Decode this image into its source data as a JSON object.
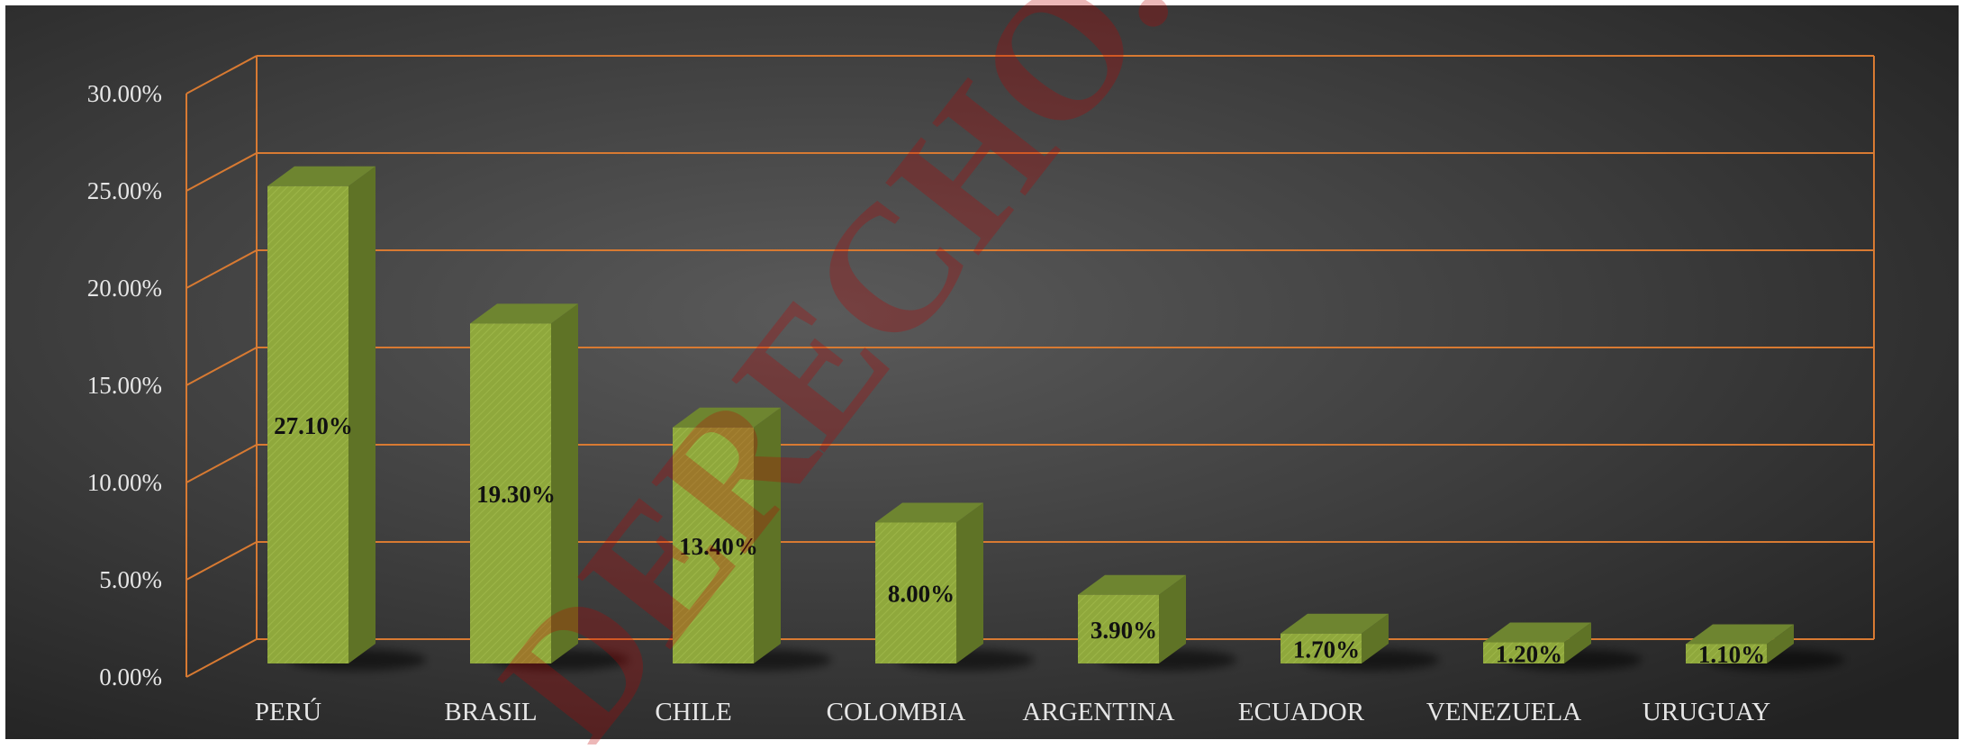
{
  "chart_data": {
    "type": "bar",
    "categories": [
      "PERÚ",
      "BRASIL",
      "CHILE",
      "COLOMBIA",
      "ARGENTINA",
      "ECUADOR",
      "VENEZUELA",
      "URUGUAY"
    ],
    "values": [
      27.1,
      19.3,
      13.4,
      8.0,
      3.9,
      1.7,
      1.2,
      1.1
    ],
    "data_labels": [
      "27.10%",
      "19.30%",
      "13.40%",
      "8.00%",
      "3.90%",
      "1.70%",
      "1.20%",
      "1.10%"
    ],
    "yticks": [
      "0.00%",
      "5.00%",
      "10.00%",
      "15.00%",
      "20.00%",
      "25.00%",
      "30.00%"
    ],
    "ylim": [
      0,
      30
    ],
    "title": "",
    "xlabel": "",
    "ylabel": "",
    "grid": true,
    "three_d": true,
    "colors": {
      "background": "#3b3b3b",
      "bar_front": "#8fa83c",
      "bar_side": "#5f7326",
      "bar_top": "#6e8530",
      "grid": "#d87a32",
      "axis_text": "#e6e6e6",
      "data_label": "#111111",
      "watermark": "#c00000"
    }
  },
  "watermark": {
    "text": "DERECHO.",
    "icon": "watermark-text"
  }
}
